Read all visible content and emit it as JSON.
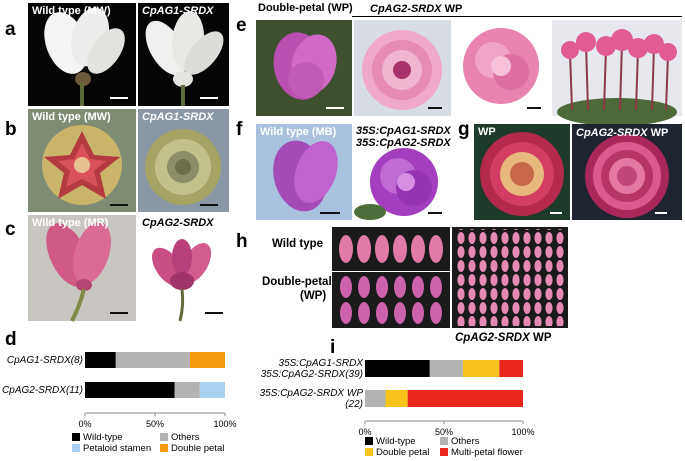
{
  "panels": {
    "a": {
      "label": "a",
      "left_caption": "Wild type (MW)",
      "right_caption": "CpAG1-SRDX"
    },
    "b": {
      "label": "b",
      "left_caption": "Wild type (MW)",
      "right_caption": "CpAG1-SRDX"
    },
    "c": {
      "label": "c",
      "left_caption": "Wild type (MR)",
      "right_caption": "CpAG2-SRDX"
    },
    "d": {
      "label": "d"
    },
    "e": {
      "label": "e",
      "left_caption": "Double-petal (WP)",
      "right_caption_gene": "CpAG2-SRDX",
      "right_caption_line": "WP"
    },
    "f": {
      "label": "f",
      "left_caption": "Wild type (MB)",
      "right_caption_1": "35S:CpAG1-SRDX",
      "right_caption_2": "35S:CpAG2-SRDX"
    },
    "g": {
      "label": "g",
      "left_caption": "WP",
      "right_caption_gene": "CpAG2-SRDX",
      "right_caption_line": "WP"
    },
    "h": {
      "label": "h",
      "row1": "Wild type",
      "row2_1": "Double-petal",
      "row2_2": "(WP)",
      "bottom_caption_gene": "CpAG2-SRDX",
      "bottom_caption_line": "WP"
    },
    "i": {
      "label": "i"
    }
  },
  "chart_data": [
    {
      "panel": "d",
      "type": "bar",
      "orientation": "horizontal",
      "stacked": true,
      "categories": [
        "CpAG1-SRDX(8)",
        "CpAG2-SRDX(11)"
      ],
      "series": [
        {
          "name": "Wild-type",
          "color": "#000000",
          "values": [
            22,
            64
          ]
        },
        {
          "name": "Others",
          "color": "#b3b3b3",
          "values": [
            53,
            18
          ]
        },
        {
          "name": "Petaloid stamen",
          "color": "#a9d1f2",
          "values": [
            0,
            18
          ]
        },
        {
          "name": "Double petal",
          "color": "#f59a0e",
          "values": [
            25,
            0
          ]
        }
      ],
      "xticks": [
        "0%",
        "50%",
        "100%"
      ],
      "xlim": [
        0,
        100
      ],
      "legend_position": "bottom"
    },
    {
      "panel": "i",
      "type": "bar",
      "orientation": "horizontal",
      "stacked": true,
      "categories": [
        "35S:CpAG1-SRDX 35S:CpAG2-SRDX(39)",
        "35S:CpAG2-SRDX WP (22)"
      ],
      "category_lines": [
        [
          "35S:CpAG1-SRDX",
          "35S:CpAG2-SRDX(39)"
        ],
        [
          "35S:CpAG2-SRDX WP",
          "(22)"
        ]
      ],
      "series": [
        {
          "name": "Wild-type",
          "color": "#000000",
          "values": [
            41,
            0
          ]
        },
        {
          "name": "Others",
          "color": "#b3b3b3",
          "values": [
            21,
            13
          ]
        },
        {
          "name": "Double petal",
          "color": "#f8c41b",
          "values": [
            23,
            14
          ]
        },
        {
          "name": "Multi-petal flower",
          "color": "#e8281d",
          "values": [
            15,
            73
          ]
        }
      ],
      "xticks": [
        "0%",
        "50%",
        "100%"
      ],
      "xlim": [
        0,
        100
      ],
      "legend_position": "bottom"
    }
  ]
}
